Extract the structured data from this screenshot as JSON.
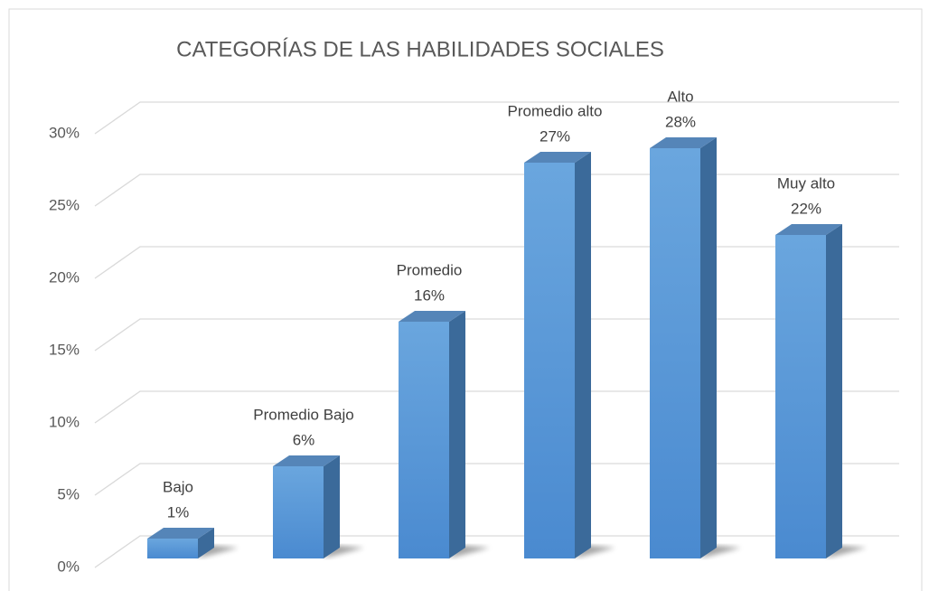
{
  "chart_data": {
    "type": "bar3d",
    "title": "CATEGORÍAS DE LAS HABILIDADES SOCIALES",
    "categories": [
      "Bajo",
      "Promedio Bajo",
      "Promedio",
      "Promedio alto",
      "Alto",
      "Muy alto"
    ],
    "values": [
      1,
      6,
      16,
      27,
      28,
      22
    ],
    "value_labels": [
      "1%",
      "6%",
      "16%",
      "27%",
      "28%",
      "22%"
    ],
    "color": "#5b9bd5",
    "ylim": [
      0,
      30
    ],
    "yticks": [
      {
        "value": 0,
        "label": "0%"
      },
      {
        "value": 5,
        "label": "5%"
      },
      {
        "value": 10,
        "label": "10%"
      },
      {
        "value": 15,
        "label": "15%"
      },
      {
        "value": 20,
        "label": "20%"
      },
      {
        "value": 25,
        "label": "25%"
      },
      {
        "value": 30,
        "label": "30%"
      }
    ],
    "grid": true
  }
}
